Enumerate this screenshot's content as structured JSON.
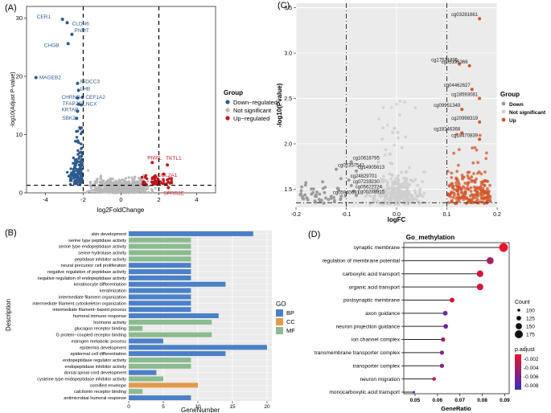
{
  "figure": {
    "background": "#ffffff"
  },
  "chart_data": [
    {
      "panel": "(A)",
      "type": "scatter",
      "subtype": "volcano",
      "xlabel": "log2FoldChange",
      "ylabel": "-log10(Adjust P-value)",
      "xlim": [
        -5,
        5
      ],
      "ylim": [
        0,
        32
      ],
      "xticks": [
        -4,
        -2,
        0,
        2,
        4
      ],
      "yticks": [
        0,
        10,
        20,
        30
      ],
      "thresholds": {
        "x": [
          -2,
          2
        ],
        "y": 1.3
      },
      "legend": {
        "title": "Group",
        "position": "right",
        "entries": [
          {
            "label": "Down−regulated",
            "color": "#2c5a8c"
          },
          {
            "label": "Not significant",
            "color": "#b8b8b8"
          },
          {
            "label": "Up−regulated",
            "color": "#c0161d"
          }
        ]
      },
      "labeled_points": [
        {
          "label": "CER1",
          "x": -3.1,
          "y": 29.8,
          "group": "down"
        },
        {
          "label": "CLDN6",
          "x": -2.85,
          "y": 29.2,
          "group": "down"
        },
        {
          "label": "PNMT",
          "x": -2.6,
          "y": 27.2,
          "group": "down"
        },
        {
          "label": "CHGB",
          "x": -2.8,
          "y": 25.6,
          "group": "down"
        },
        {
          "label": "MAGEB2",
          "x": -4.5,
          "y": 19.8,
          "group": "down"
        },
        {
          "label": "IGDCC3",
          "x": -2.3,
          "y": 18.8,
          "group": "down"
        },
        {
          "label": "LHB",
          "x": -2.25,
          "y": 17.6,
          "group": "down"
        },
        {
          "label": "CEF1A2",
          "x": -2.05,
          "y": 16.4,
          "group": "down"
        },
        {
          "label": "CHRNB",
          "x": -2.3,
          "y": 16.3,
          "group": "down"
        },
        {
          "label": "TFAP2C",
          "x": -2.25,
          "y": 15.2,
          "group": "down"
        },
        {
          "label": "LNCX",
          "x": -2.1,
          "y": 15.1,
          "group": "down"
        },
        {
          "label": "KRTAP",
          "x": -2.3,
          "y": 14.0,
          "group": "down"
        },
        {
          "label": "SBK2",
          "x": -2.35,
          "y": 12.8,
          "group": "down"
        },
        {
          "label": "PIWIL",
          "x": 1.65,
          "y": 5.2,
          "group": "up"
        },
        {
          "label": "TKTL1",
          "x": 2.45,
          "y": 4.8,
          "group": "up"
        },
        {
          "label": "COL2A1",
          "x": 2.25,
          "y": 3.2,
          "group": "up"
        },
        {
          "label": "SPRR2E",
          "x": 2.5,
          "y": 0.9,
          "group": "up"
        }
      ]
    },
    {
      "panel": "(B)",
      "type": "bar",
      "orientation": "horizontal",
      "xlabel": "GeneNumber",
      "ylabel": "Description",
      "xlim": [
        0,
        20
      ],
      "xticks": [
        0,
        5,
        10,
        15,
        20
      ],
      "legend": {
        "title": "GO",
        "position": "right",
        "entries": [
          {
            "label": "BP",
            "color": "#4a80c8"
          },
          {
            "label": "CC",
            "color": "#e49a4c"
          },
          {
            "label": "MF",
            "color": "#8bbb8e"
          }
        ]
      },
      "bars": [
        {
          "label": "skin development",
          "value": 18,
          "go": "BP"
        },
        {
          "label": "serine type peptidase activity",
          "value": 9,
          "go": "MF"
        },
        {
          "label": "serine type endopeptidase activity",
          "value": 9,
          "go": "MF"
        },
        {
          "label": "serine hydrolase activity",
          "value": 9,
          "go": "MF"
        },
        {
          "label": "peptidase inhibitor activity",
          "value": 9,
          "go": "MF"
        },
        {
          "label": "neural precursor cell proliferation",
          "value": 9,
          "go": "BP"
        },
        {
          "label": "negative regulation of peptidase activity",
          "value": 9,
          "go": "BP"
        },
        {
          "label": "negative regulation of endopeptidase activity",
          "value": 9,
          "go": "BP"
        },
        {
          "label": "keratinocyte differentiation",
          "value": 14,
          "go": "BP"
        },
        {
          "label": "keratinization",
          "value": 9,
          "go": "BP"
        },
        {
          "label": "intermediate filament organization",
          "value": 9,
          "go": "BP"
        },
        {
          "label": "intermediate filament cytoskeleton organization",
          "value": 9,
          "go": "BP"
        },
        {
          "label": "intermediate filament−based process",
          "value": 9,
          "go": "BP"
        },
        {
          "label": "humoral immune response",
          "value": 13,
          "go": "BP"
        },
        {
          "label": "hormone activity",
          "value": 12,
          "go": "MF"
        },
        {
          "label": "glucagon receptor binding",
          "value": 2,
          "go": "MF"
        },
        {
          "label": "G protein−coupled receptor binding",
          "value": 12,
          "go": "MF"
        },
        {
          "label": "estrogen metabolic process",
          "value": 5,
          "go": "BP"
        },
        {
          "label": "epidermis development",
          "value": 20,
          "go": "BP"
        },
        {
          "label": "epidermal cell differentiation",
          "value": 14,
          "go": "BP"
        },
        {
          "label": "endopeptidase regulator activity",
          "value": 9,
          "go": "MF"
        },
        {
          "label": "endopeptidase inhibitor activity",
          "value": 9,
          "go": "MF"
        },
        {
          "label": "dorsal spinal cord development",
          "value": 4,
          "go": "BP"
        },
        {
          "label": "cysteine type endopeptidase inhibitor activity",
          "value": 5,
          "go": "MF"
        },
        {
          "label": "cornified envelope",
          "value": 10,
          "go": "CC"
        },
        {
          "label": "calcitonin receptor binding",
          "value": 2,
          "go": "MF"
        },
        {
          "label": "antimicrobial humoral response",
          "value": 9,
          "go": "BP"
        }
      ]
    },
    {
      "panel": "(C)",
      "type": "scatter",
      "subtype": "volcano",
      "xlabel": "logFC",
      "ylabel": "-log10(Pvalue)",
      "xlim": [
        -0.2,
        0.2
      ],
      "ylim": [
        1.3,
        3.55
      ],
      "xticks": [
        -0.2,
        -0.1,
        0.0,
        0.1,
        0.2
      ],
      "xticklabels": [
        "-0.2",
        "-0.1",
        "0.0",
        "0.1",
        "0.2"
      ],
      "yticks": [
        1.5,
        2.0,
        2.5,
        3.0,
        3.5
      ],
      "yticklabels": [
        "1.5",
        "2.0",
        "2.5",
        "3.0",
        "3.5"
      ],
      "thresholds": {
        "x": [
          -0.1,
          0.1
        ],
        "y": 1.35
      },
      "legend": {
        "title": "Group",
        "position": "right",
        "entries": [
          {
            "label": "Down",
            "color": "#9a9a9a"
          },
          {
            "label": "Not significant",
            "color": "#cfcfcf"
          },
          {
            "label": "Up",
            "color": "#d4562a"
          }
        ]
      },
      "labeled_points": [
        {
          "label": "cg03281661",
          "x": 0.165,
          "y": 3.38
        },
        {
          "label": "cg17571335",
          "x": 0.125,
          "y": 2.88
        },
        {
          "label": "cg05196366",
          "x": 0.145,
          "y": 2.86
        },
        {
          "label": "cg04462627",
          "x": 0.15,
          "y": 2.6
        },
        {
          "label": "cg18593081",
          "x": 0.165,
          "y": 2.5
        },
        {
          "label": "cg09951349",
          "x": 0.13,
          "y": 2.38
        },
        {
          "label": "cg20998319",
          "x": 0.165,
          "y": 2.24
        },
        {
          "label": "cg18246368",
          "x": 0.13,
          "y": 2.12
        },
        {
          "label": "cg18470839",
          "x": 0.165,
          "y": 2.05
        },
        {
          "label": "cg10616795",
          "x": -0.09,
          "y": 1.8
        },
        {
          "label": "cg02357541",
          "x": -0.12,
          "y": 1.72
        },
        {
          "label": "cg14905613",
          "x": -0.08,
          "y": 1.7
        },
        {
          "label": "cg24829701",
          "x": -0.095,
          "y": 1.6
        },
        {
          "label": "cg07233230",
          "x": -0.09,
          "y": 1.54
        },
        {
          "label": "cg05622724",
          "x": -0.085,
          "y": 1.48
        },
        {
          "label": "cg00238915",
          "x": -0.08,
          "y": 1.43
        },
        {
          "label": "cg05940691",
          "x": -0.13,
          "y": 1.42
        }
      ]
    },
    {
      "panel": "(D)",
      "type": "scatter",
      "subtype": "lollipop",
      "title": "Go_methylation",
      "xlabel": "GeneRatio",
      "xlim": [
        0.045,
        0.092
      ],
      "xticks": [
        0.05,
        0.06,
        0.07,
        0.08,
        0.09
      ],
      "xticklabels": [
        "0.05",
        "0.06",
        "0.07",
        "0.08",
        "0.09"
      ],
      "size_legend": {
        "title": "Count",
        "values": [
          "100",
          "125",
          "150",
          "175"
        ]
      },
      "color_legend": {
        "title": "p.adjust",
        "ticks": [
          "-0.002",
          "-0.004",
          "-0.006",
          "-0.008"
        ],
        "colors": [
          "#e8132c",
          "#3a2fc0"
        ]
      },
      "terms": [
        {
          "label": "synaptic membrane",
          "gene_ratio": 0.0895,
          "count": 185,
          "p_adjust": -0.0005
        },
        {
          "label": "regulation of membrane potential",
          "gene_ratio": 0.0835,
          "count": 160,
          "p_adjust": -0.0035
        },
        {
          "label": "carboxylic acid transport",
          "gene_ratio": 0.079,
          "count": 155,
          "p_adjust": -0.0015
        },
        {
          "label": "organic acid transport",
          "gene_ratio": 0.079,
          "count": 155,
          "p_adjust": -0.0015
        },
        {
          "label": "postsynaptic membrane",
          "gene_ratio": 0.0665,
          "count": 128,
          "p_adjust": -0.0012
        },
        {
          "label": "axon guidance",
          "gene_ratio": 0.0635,
          "count": 125,
          "p_adjust": -0.006
        },
        {
          "label": "neuron projection guidance",
          "gene_ratio": 0.0637,
          "count": 125,
          "p_adjust": -0.006
        },
        {
          "label": "ion channel complex",
          "gene_ratio": 0.0625,
          "count": 120,
          "p_adjust": -0.004
        },
        {
          "label": "transmembrane transporter complex",
          "gene_ratio": 0.062,
          "count": 118,
          "p_adjust": -0.005
        },
        {
          "label": "transporter complex",
          "gene_ratio": 0.062,
          "count": 118,
          "p_adjust": -0.005
        },
        {
          "label": "neuron migration",
          "gene_ratio": 0.0585,
          "count": 112,
          "p_adjust": -0.0018
        },
        {
          "label": "monocarboxylic acid transport",
          "gene_ratio": 0.0495,
          "count": 90,
          "p_adjust": -0.0085
        }
      ]
    }
  ]
}
